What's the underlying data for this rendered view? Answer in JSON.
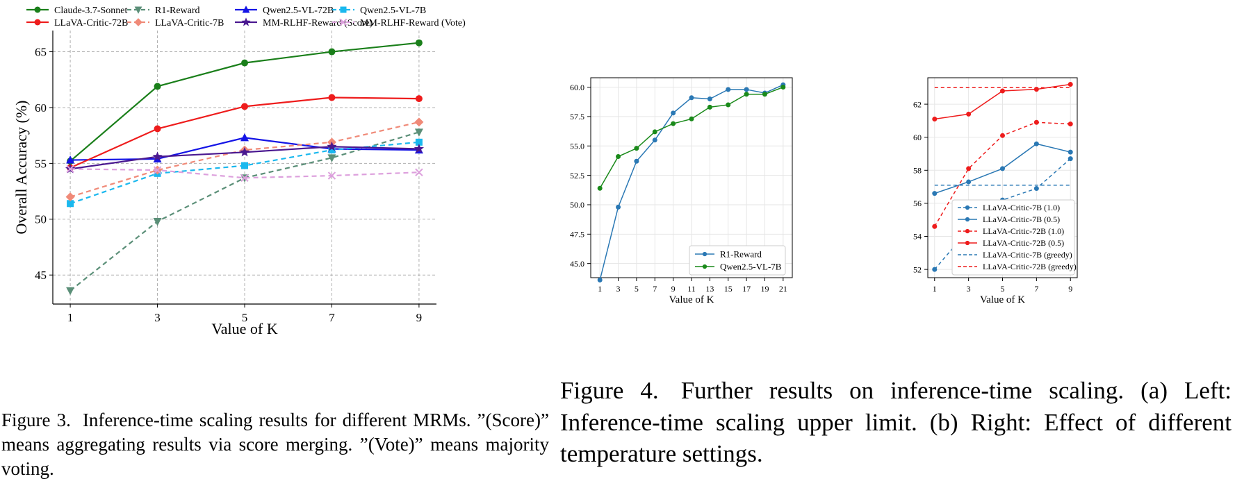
{
  "figure3": {
    "caption_label": "Figure 3.",
    "caption_text": "Inference-time scaling results for different MRMs. ”(Score)” means aggregating results via score merging. ”(Vote)” means majority voting."
  },
  "figure4": {
    "caption_label": "Figure 4.",
    "caption_text": "Further results on inference-time scaling. (a) Left: Inference-time scaling upper limit. (b) Right: Effect of different temperature settings."
  },
  "chart_data": [
    {
      "id": "fig3",
      "type": "line",
      "xlabel": "Value of K",
      "ylabel": "Overall Accuracy (%)",
      "x": [
        1,
        3,
        5,
        7,
        9
      ],
      "xlim": [
        0.6,
        9.4
      ],
      "ylim": [
        42.4,
        66.9
      ],
      "yticks": [
        45,
        50,
        55,
        60,
        65
      ],
      "grid": true,
      "legend_placement": "top, outside, 4 columns",
      "series": [
        {
          "name": "Claude-3.7-Sonnet",
          "color": "#1a7f1a",
          "dash": "solid",
          "marker": "circle",
          "values": [
            55.2,
            61.9,
            64.0,
            65.0,
            65.8
          ]
        },
        {
          "name": "R1-Reward",
          "color": "#5b8f78",
          "dash": "dashed",
          "marker": "triangle-down",
          "values": [
            43.6,
            49.8,
            53.7,
            55.5,
            57.8
          ]
        },
        {
          "name": "Qwen2.5-VL-72B",
          "color": "#1414e6",
          "dash": "solid",
          "marker": "triangle-up",
          "values": [
            55.3,
            55.4,
            57.3,
            56.3,
            56.2
          ]
        },
        {
          "name": "Qwen2.5-VL-7B",
          "color": "#1ab8ee",
          "dash": "dashed",
          "marker": "square",
          "values": [
            51.4,
            54.1,
            54.8,
            56.2,
            56.9
          ]
        },
        {
          "name": "LLaVA-Critic-72B",
          "color": "#ee1c1c",
          "dash": "solid",
          "marker": "circle",
          "values": [
            54.6,
            58.1,
            60.1,
            60.9,
            60.8
          ]
        },
        {
          "name": "LLaVA-Critic-7B",
          "color": "#f08a78",
          "dash": "dashed",
          "marker": "diamond",
          "values": [
            52.0,
            54.4,
            56.2,
            56.9,
            58.7
          ]
        },
        {
          "name": "MM-RLHF-Reward (Score)",
          "color": "#4a1890",
          "dash": "solid",
          "marker": "star",
          "values": [
            54.5,
            55.6,
            56.0,
            56.5,
            56.3
          ]
        },
        {
          "name": "MM-RLHF-Reward (Vote)",
          "color": "#dda0dd",
          "dash": "dashed",
          "marker": "x",
          "values": [
            54.5,
            54.4,
            53.7,
            53.9,
            54.2
          ]
        }
      ]
    },
    {
      "id": "fig4a",
      "type": "line",
      "xlabel": "Value of K",
      "ylabel": "Overall Accuracy (%)",
      "x": [
        1,
        3,
        5,
        7,
        9,
        11,
        13,
        15,
        17,
        19,
        21
      ],
      "xlim": [
        0,
        22
      ],
      "ylim": [
        43.8,
        60.8
      ],
      "yticks": [
        "45.0",
        "47.5",
        "50.0",
        "52.5",
        "55.0",
        "57.5",
        "60.0"
      ],
      "grid": true,
      "legend_placement": "lower right",
      "series": [
        {
          "name": "R1-Reward",
          "color": "#2a78b4",
          "dash": "solid",
          "marker": "circle",
          "values": [
            43.6,
            49.8,
            53.7,
            55.5,
            57.8,
            59.1,
            59.0,
            59.8,
            59.8,
            59.5,
            60.2
          ]
        },
        {
          "name": "Qwen2.5-VL-7B",
          "color": "#1a8a1a",
          "dash": "solid",
          "marker": "circle",
          "values": [
            51.4,
            54.1,
            54.8,
            56.2,
            56.9,
            57.3,
            58.3,
            58.5,
            59.4,
            59.4,
            60.0
          ]
        }
      ]
    },
    {
      "id": "fig4b",
      "type": "line",
      "xlabel": "Value of K",
      "ylabel": "Overall Accuracy (%)",
      "x": [
        1,
        3,
        5,
        7,
        9
      ],
      "xlim": [
        0.6,
        9.4
      ],
      "ylim": [
        51.5,
        63.6
      ],
      "yticks": [
        52,
        54,
        56,
        58,
        60,
        62
      ],
      "grid": true,
      "legend_placement": "lower right",
      "series": [
        {
          "name": "LLaVA-Critic-7B (1.0)",
          "color": "#2a78b4",
          "dash": "dashed",
          "marker": "circle",
          "values": [
            52.0,
            54.4,
            56.2,
            56.9,
            58.7
          ]
        },
        {
          "name": "LLaVA-Critic-7B (0.5)",
          "color": "#2a78b4",
          "dash": "solid",
          "marker": "circle",
          "values": [
            56.6,
            57.3,
            58.1,
            59.6,
            59.1
          ]
        },
        {
          "name": "LLaVA-Critic-72B (1.0)",
          "color": "#ee1c1c",
          "dash": "dashed",
          "marker": "circle",
          "values": [
            54.6,
            58.1,
            60.1,
            60.9,
            60.8
          ]
        },
        {
          "name": "LLaVA-Critic-72B (0.5)",
          "color": "#ee1c1c",
          "dash": "solid",
          "marker": "circle",
          "values": [
            61.1,
            61.4,
            62.8,
            62.9,
            63.2
          ]
        },
        {
          "name": "LLaVA-Critic-7B (greedy)",
          "color": "#2a78b4",
          "dash": "dashed",
          "marker": "none",
          "values": [
            57.1,
            57.1,
            57.1,
            57.1,
            57.1
          ]
        },
        {
          "name": "LLaVA-Critic-72B (greedy)",
          "color": "#ee1c1c",
          "dash": "dashed",
          "marker": "none",
          "values": [
            63.0,
            63.0,
            63.0,
            63.0,
            63.0
          ]
        }
      ]
    }
  ]
}
